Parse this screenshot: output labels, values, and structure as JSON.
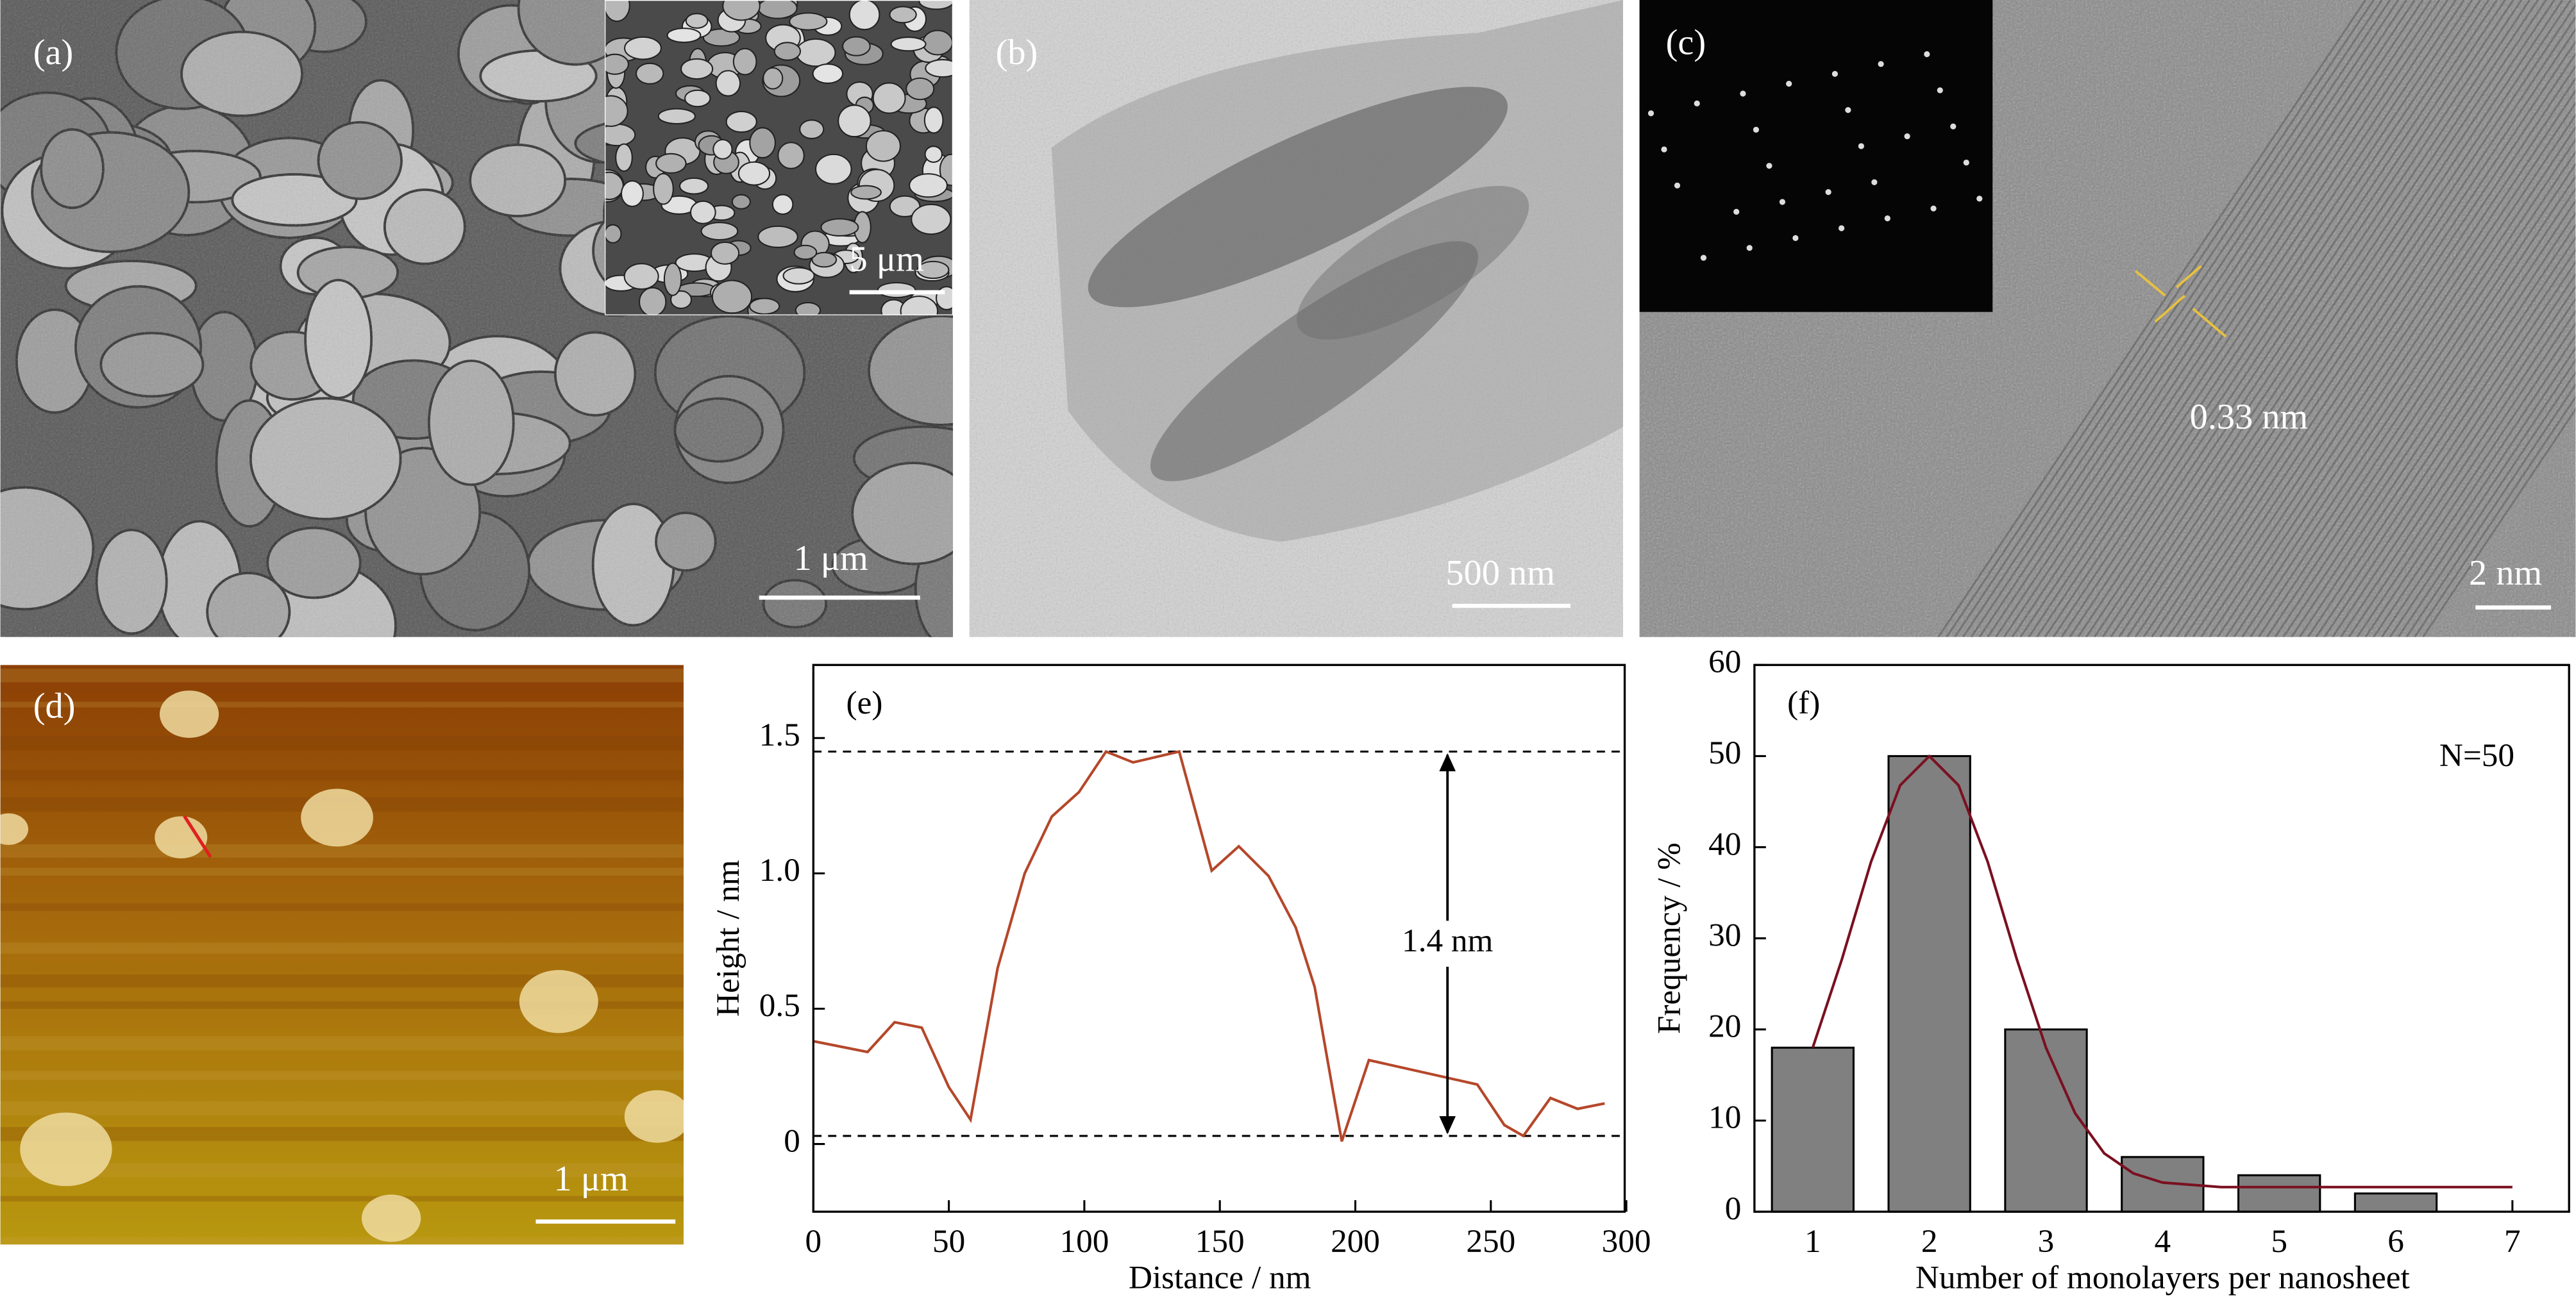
{
  "panels": {
    "a": {
      "label": "(a)",
      "scale_bar": "1 μm",
      "inset_scale_bar": "5 μm"
    },
    "b": {
      "label": "(b)",
      "scale_bar": "500 nm"
    },
    "c": {
      "label": "(c)",
      "scale_bar": "2 nm",
      "annotation": "0.33 nm"
    },
    "d": {
      "label": "(d)",
      "scale_bar": "1 μm"
    }
  },
  "chart_data": [
    {
      "type": "line",
      "panel_label": "(e)",
      "x_label": "Distance / nm",
      "y_label": "Height / nm",
      "x": [
        0,
        20,
        30,
        40,
        50,
        58,
        68,
        78,
        88,
        98,
        108,
        118,
        135,
        147,
        157,
        168,
        178,
        185,
        195,
        205,
        245,
        255,
        262,
        272,
        282,
        292
      ],
      "values": [
        0.38,
        0.34,
        0.45,
        0.43,
        0.21,
        0.09,
        0.65,
        1.0,
        1.21,
        1.3,
        1.45,
        1.41,
        1.45,
        1.01,
        1.1,
        0.99,
        0.8,
        0.58,
        0.01,
        0.31,
        0.22,
        0.07,
        0.03,
        0.17,
        0.13,
        0.15
      ],
      "color": "#b5472a",
      "reference_lines": [
        1.45,
        0.03
      ],
      "annotation": "1.4 nm",
      "xlim": [
        0,
        300
      ],
      "xticks": [
        0,
        50,
        100,
        150,
        200,
        250,
        300
      ],
      "ylim": [
        -0.25,
        1.77
      ],
      "yticks": [
        0,
        0.5,
        {
          "value": 1,
          "label": "1.0"
        },
        1.5
      ]
    },
    {
      "type": "bar",
      "panel_label": "(f)",
      "annotation": "N=50",
      "x_label": "Number of monolayers per nanosheet",
      "y_label": "Frequency / %",
      "x": [
        1,
        2,
        3,
        4,
        5,
        6
      ],
      "values": [
        18,
        50,
        20,
        6,
        4,
        2
      ],
      "color": "#808080",
      "fit": {
        "color": "#7a1020",
        "x": [
          1,
          1.25,
          1.5,
          1.75,
          2,
          2.25,
          2.5,
          2.75,
          3,
          3.25,
          3.5,
          3.75,
          4,
          4.5,
          5,
          6,
          7
        ],
        "values": [
          18,
          27.7,
          38.4,
          46.8,
          50,
          46.8,
          38.4,
          27.7,
          18,
          10.8,
          6.4,
          4.2,
          3.2,
          2.7,
          2.7,
          2.7,
          2.7
        ]
      },
      "xlim": [
        0.5,
        7.5
      ],
      "xticks": [
        1,
        2,
        3,
        4,
        5,
        6,
        7
      ],
      "ylim": [
        0,
        60
      ],
      "yticks": [
        0,
        10,
        20,
        30,
        40,
        50,
        60
      ]
    }
  ]
}
